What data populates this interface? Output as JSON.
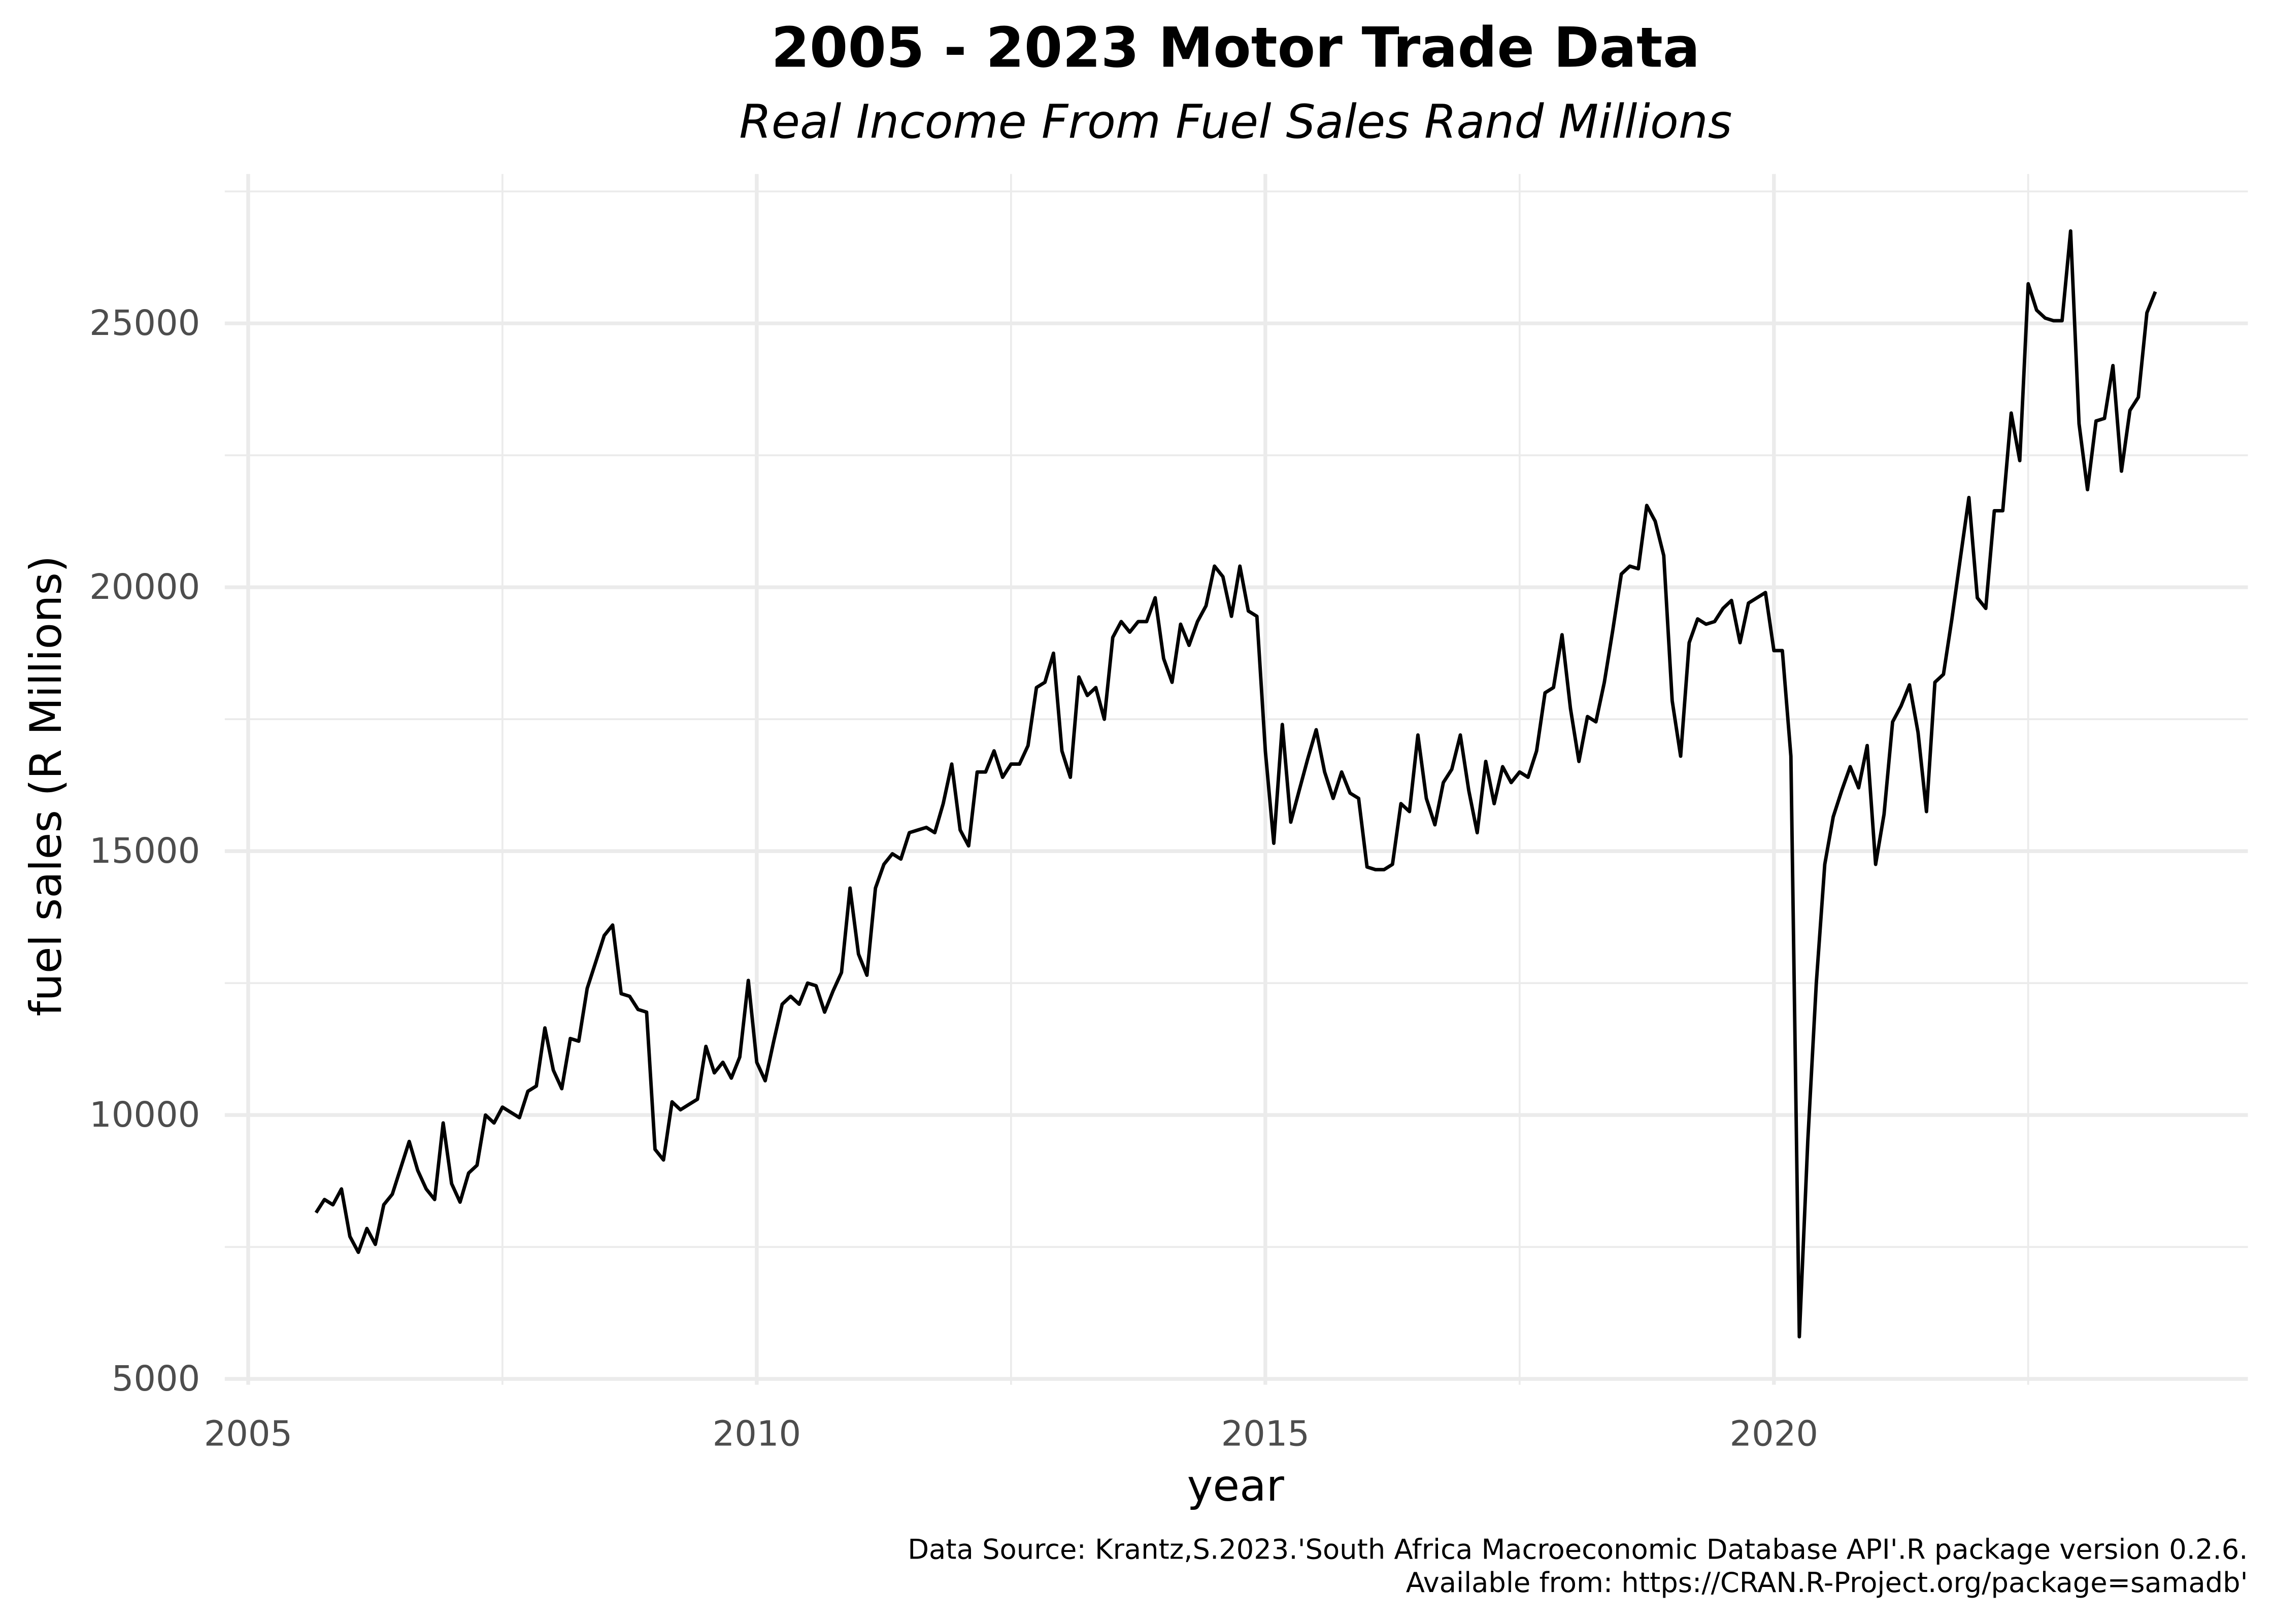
{
  "chart_data": {
    "type": "line",
    "title": "2005 - 2023 Motor Trade Data",
    "subtitle": "Real Income From Fuel Sales Rand Millions",
    "x_label": "year",
    "y_label": "fuel sales (R Millions)",
    "caption": [
      "Data Source: Krantz,S.2023.'South Africa Macroeconomic Database API'.R package version 0.2.6.",
      "Available from: https://CRAN.R-Project.org/package=samadb'"
    ],
    "color": "#000000",
    "grid": true,
    "xlim": [
      2004.77,
      2024.66
    ],
    "xticks": [
      2005,
      2010,
      2015,
      2020
    ],
    "ylim": [
      4890,
      27830
    ],
    "yticks": [
      5000,
      10000,
      15000,
      20000,
      25000
    ],
    "x": [
      2005.667,
      2005.75,
      2005.833,
      2005.917,
      2006.0,
      2006.083,
      2006.167,
      2006.25,
      2006.333,
      2006.417,
      2006.5,
      2006.583,
      2006.667,
      2006.75,
      2006.833,
      2006.917,
      2007.0,
      2007.083,
      2007.167,
      2007.25,
      2007.333,
      2007.417,
      2007.5,
      2007.583,
      2007.667,
      2007.75,
      2007.833,
      2007.917,
      2008.0,
      2008.083,
      2008.167,
      2008.25,
      2008.333,
      2008.417,
      2008.5,
      2008.583,
      2008.667,
      2008.75,
      2008.833,
      2008.917,
      2009.0,
      2009.083,
      2009.167,
      2009.25,
      2009.333,
      2009.417,
      2009.5,
      2009.583,
      2009.667,
      2009.75,
      2009.833,
      2009.917,
      2010.0,
      2010.083,
      2010.167,
      2010.25,
      2010.333,
      2010.417,
      2010.5,
      2010.583,
      2010.667,
      2010.75,
      2010.833,
      2010.917,
      2011.0,
      2011.083,
      2011.167,
      2011.25,
      2011.333,
      2011.417,
      2011.5,
      2011.583,
      2011.667,
      2011.75,
      2011.833,
      2011.917,
      2012.0,
      2012.083,
      2012.167,
      2012.25,
      2012.333,
      2012.417,
      2012.5,
      2012.583,
      2012.667,
      2012.75,
      2012.833,
      2012.917,
      2013.0,
      2013.083,
      2013.167,
      2013.25,
      2013.333,
      2013.417,
      2013.5,
      2013.583,
      2013.667,
      2013.75,
      2013.833,
      2013.917,
      2014.0,
      2014.083,
      2014.167,
      2014.25,
      2014.333,
      2014.417,
      2014.5,
      2014.583,
      2014.667,
      2014.75,
      2014.833,
      2014.917,
      2015.0,
      2015.083,
      2015.167,
      2015.25,
      2015.333,
      2015.417,
      2015.5,
      2015.583,
      2015.667,
      2015.75,
      2015.833,
      2015.917,
      2016.0,
      2016.083,
      2016.167,
      2016.25,
      2016.333,
      2016.417,
      2016.5,
      2016.583,
      2016.667,
      2016.75,
      2016.833,
      2016.917,
      2017.0,
      2017.083,
      2017.167,
      2017.25,
      2017.333,
      2017.417,
      2017.5,
      2017.583,
      2017.667,
      2017.75,
      2017.833,
      2017.917,
      2018.0,
      2018.083,
      2018.167,
      2018.25,
      2018.333,
      2018.417,
      2018.5,
      2018.583,
      2018.667,
      2018.75,
      2018.833,
      2018.917,
      2019.0,
      2019.083,
      2019.167,
      2019.25,
      2019.333,
      2019.417,
      2019.5,
      2019.583,
      2019.667,
      2019.75,
      2019.833,
      2019.917,
      2020.0,
      2020.083,
      2020.167,
      2020.25,
      2020.333,
      2020.417,
      2020.5,
      2020.583,
      2020.667,
      2020.75,
      2020.833,
      2020.917,
      2021.0,
      2021.083,
      2021.167,
      2021.25,
      2021.333,
      2021.417,
      2021.5,
      2021.583,
      2021.667,
      2021.75,
      2021.833,
      2021.917,
      2022.0,
      2022.083,
      2022.167,
      2022.25,
      2022.333,
      2022.417,
      2022.5,
      2022.583,
      2022.667,
      2022.75,
      2022.833,
      2022.917,
      2023.0,
      2023.083,
      2023.167,
      2023.25,
      2023.333,
      2023.417,
      2023.5,
      2023.583,
      2023.667,
      2023.75
    ],
    "values": [
      8150,
      8400,
      8300,
      8600,
      7700,
      7400,
      7850,
      7550,
      8300,
      8500,
      9000,
      9500,
      8950,
      8600,
      8400,
      9850,
      8700,
      8350,
      8900,
      9050,
      10000,
      9850,
      10150,
      10050,
      9950,
      10450,
      10550,
      11650,
      10850,
      10500,
      11450,
      11400,
      12400,
      12900,
      13400,
      13600,
      12300,
      12250,
      12000,
      11950,
      9350,
      9150,
      10250,
      10100,
      10200,
      10300,
      11300,
      10800,
      11000,
      10700,
      11100,
      12550,
      11000,
      10650,
      11400,
      12100,
      12250,
      12100,
      12500,
      12450,
      11950,
      12350,
      12700,
      14300,
      13050,
      12650,
      14300,
      14750,
      14950,
      14850,
      15350,
      15400,
      15450,
      15350,
      15900,
      16650,
      15400,
      15100,
      16500,
      16500,
      16900,
      16400,
      16650,
      16650,
      17000,
      18100,
      18200,
      18750,
      16900,
      16400,
      18300,
      17950,
      18100,
      17500,
      19050,
      19350,
      19150,
      19350,
      19350,
      19800,
      18650,
      18200,
      19300,
      18900,
      19350,
      19650,
      20400,
      20200,
      19450,
      20400,
      19550,
      19450,
      16900,
      15150,
      17400,
      15550,
      16150,
      16750,
      17300,
      16500,
      16000,
      16500,
      16100,
      16000,
      14700,
      14650,
      14650,
      14750,
      15900,
      15750,
      17200,
      16000,
      15500,
      16300,
      16550,
      17200,
      16150,
      15350,
      16700,
      15900,
      16600,
      16300,
      16500,
      16400,
      16900,
      18000,
      18100,
      19100,
      17700,
      16700,
      17550,
      17450,
      18200,
      19200,
      20250,
      20400,
      20350,
      21550,
      21250,
      20600,
      17850,
      16800,
      18950,
      19400,
      19300,
      19350,
      19600,
      19750,
      18950,
      19700,
      19800,
      19900,
      18800,
      18800,
      16800,
      5800,
      9500,
      12500,
      14750,
      15650,
      16150,
      16600,
      16200,
      17000,
      14750,
      15700,
      17450,
      17750,
      18150,
      17250,
      15750,
      18200,
      18350,
      19400,
      20550,
      21700,
      19800,
      19600,
      21450,
      21450,
      23300,
      22400,
      25750,
      25250,
      25100,
      25050,
      25050,
      26750,
      23100,
      21850,
      23150,
      23200,
      24200,
      22200,
      23350,
      23600,
      25200,
      25600
    ]
  }
}
